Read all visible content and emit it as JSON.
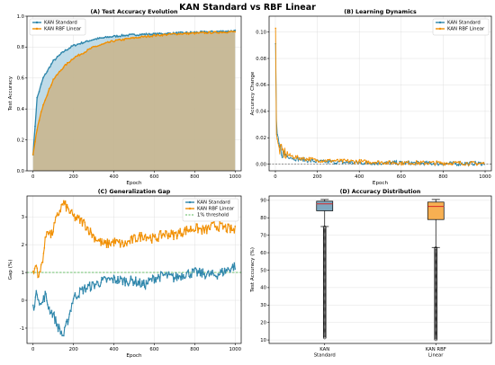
{
  "figure": {
    "suptitle": "KAN Standard vs RBF Linear"
  },
  "colors": {
    "standard": "#2e86ab",
    "rbf": "#f18f01",
    "threshold": "#5cb85c",
    "zero_line": "#555555",
    "median": "#d62728"
  },
  "chart_data": [
    {
      "id": "A",
      "type": "line",
      "title": "(A) Test Accuracy Evolution",
      "xlabel": "Epoch",
      "ylabel": "Test Accuracy",
      "xlim": [
        -30,
        1030
      ],
      "ylim": [
        0.0,
        1.0
      ],
      "xticks": [
        "0",
        "200",
        "400",
        "600",
        "800",
        "1000"
      ],
      "yticks": [
        "0.0",
        "0.2",
        "0.4",
        "0.6",
        "0.8",
        "1.0"
      ],
      "grid": true,
      "legend": "top-left",
      "fill_to_zero": true,
      "series": [
        {
          "name": "KAN Standard",
          "x": [
            0,
            20,
            50,
            100,
            150,
            200,
            300,
            400,
            500,
            600,
            700,
            800,
            900,
            1000
          ],
          "y": [
            0.11,
            0.47,
            0.6,
            0.71,
            0.77,
            0.81,
            0.85,
            0.87,
            0.88,
            0.885,
            0.89,
            0.895,
            0.9,
            0.905
          ]
        },
        {
          "name": "KAN RBF Linear",
          "x": [
            0,
            20,
            50,
            100,
            150,
            200,
            300,
            400,
            500,
            600,
            700,
            800,
            900,
            1000
          ],
          "y": [
            0.1,
            0.27,
            0.43,
            0.59,
            0.67,
            0.73,
            0.8,
            0.84,
            0.86,
            0.875,
            0.885,
            0.89,
            0.895,
            0.9
          ]
        }
      ]
    },
    {
      "id": "B",
      "type": "line",
      "title": "(B) Learning Dynamics",
      "xlabel": "Epoch",
      "ylabel": "Accuracy Change",
      "xlim": [
        -30,
        1030
      ],
      "ylim": [
        -0.005,
        0.112
      ],
      "xticks": [
        "0",
        "200",
        "400",
        "600",
        "800",
        "1000"
      ],
      "yticks": [
        "0.00",
        "0.02",
        "0.04",
        "0.06",
        "0.08",
        "0.10"
      ],
      "reference_line": 0.0,
      "grid": true,
      "legend": "top-right",
      "series": [
        {
          "name": "KAN Standard",
          "x": [
            1,
            3,
            6,
            10,
            20,
            40,
            60,
            100,
            200,
            400,
            600,
            800,
            1000
          ],
          "y": [
            0.09,
            0.036,
            0.025,
            0.018,
            0.012,
            0.008,
            0.006,
            0.004,
            0.002,
            0.001,
            0.001,
            0.0005,
            0.0005
          ]
        },
        {
          "name": "KAN RBF Linear",
          "x": [
            1,
            3,
            6,
            10,
            20,
            40,
            60,
            100,
            200,
            400,
            600,
            800,
            1000
          ],
          "y": [
            0.105,
            0.03,
            0.02,
            0.015,
            0.011,
            0.009,
            0.007,
            0.005,
            0.003,
            0.002,
            0.001,
            0.001,
            0.0005
          ]
        }
      ]
    },
    {
      "id": "C",
      "type": "line",
      "title": "(C) Generalization Gap",
      "xlabel": "Epoch",
      "ylabel": "Gap (%)",
      "xlim": [
        -30,
        1030
      ],
      "ylim": [
        -1.55,
        3.75
      ],
      "xticks": [
        "0",
        "200",
        "400",
        "600",
        "800",
        "1000"
      ],
      "yticks": [
        "-1",
        "0",
        "1",
        "2",
        "3"
      ],
      "threshold": 1.0,
      "grid": true,
      "legend": "top-right",
      "series": [
        {
          "name": "KAN Standard",
          "x": [
            0,
            20,
            40,
            60,
            80,
            100,
            120,
            150,
            180,
            200,
            250,
            300,
            350,
            400,
            450,
            500,
            550,
            600,
            650,
            700,
            750,
            800,
            850,
            900,
            950,
            1000
          ],
          "y": [
            -0.3,
            0.3,
            -0.2,
            0.2,
            -0.3,
            -0.5,
            -0.9,
            -1.3,
            -0.5,
            0.1,
            0.4,
            0.55,
            0.7,
            0.75,
            0.7,
            0.7,
            0.55,
            0.8,
            0.9,
            0.8,
            0.95,
            1.0,
            0.95,
            0.9,
            1.05,
            1.25
          ]
        },
        {
          "name": "KAN RBF Linear",
          "x": [
            0,
            15,
            30,
            50,
            70,
            90,
            110,
            130,
            150,
            170,
            200,
            250,
            300,
            350,
            400,
            450,
            500,
            550,
            600,
            650,
            700,
            750,
            800,
            850,
            900,
            950,
            1000
          ],
          "y": [
            0.9,
            1.3,
            0.8,
            1.6,
            2.6,
            2.3,
            2.8,
            3.2,
            3.5,
            3.3,
            3.0,
            2.8,
            2.3,
            2.0,
            2.1,
            2.0,
            2.2,
            2.35,
            2.2,
            2.4,
            2.35,
            2.5,
            2.6,
            2.5,
            2.7,
            2.6,
            2.5
          ]
        }
      ],
      "threshold_label": "1% threshold"
    },
    {
      "id": "D",
      "type": "box",
      "title": "(D) Accuracy Distribution",
      "ylabel": "Test Accuracy (%)",
      "ylim": [
        8,
        92.5
      ],
      "yticks": [
        "10",
        "20",
        "30",
        "40",
        "50",
        "60",
        "70",
        "80",
        "90"
      ],
      "grid": true,
      "categories": [
        "KAN\nStandard",
        "KAN RBF\nLinear"
      ],
      "category_lines": [
        [
          "KAN",
          "Standard"
        ],
        [
          "KAN RBF",
          "Linear"
        ]
      ],
      "boxes": [
        {
          "name": "KAN Standard",
          "whisker_low": 75,
          "q1": 84,
          "median": 88,
          "q3": 89.5,
          "whisker_high": 90.5,
          "outliers_min": 11
        },
        {
          "name": "KAN RBF Linear",
          "whisker_low": 63,
          "q1": 79,
          "median": 86.5,
          "q3": 89,
          "whisker_high": 90.5,
          "outliers_min": 10
        }
      ]
    }
  ]
}
